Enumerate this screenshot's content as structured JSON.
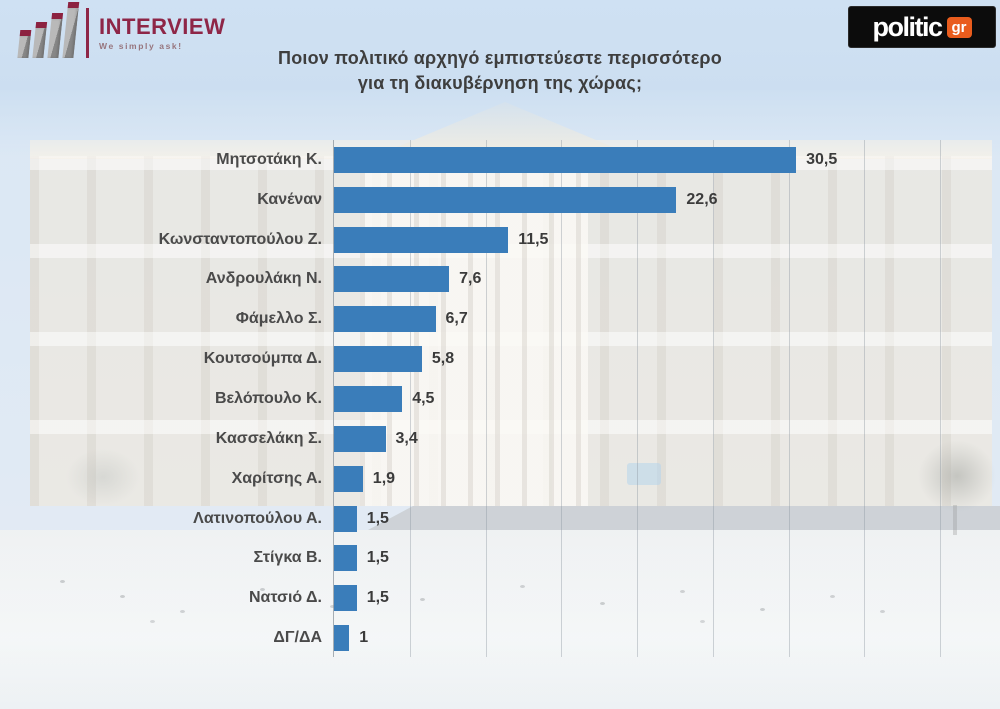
{
  "branding": {
    "interview": {
      "name": "INTERVIEW",
      "tagline": "We simply ask!"
    },
    "politic": {
      "name": "politic",
      "suffix": "gr"
    }
  },
  "title": {
    "line1": "Ποιον πολιτικό αρχηγό εμπιστεύεστε περισσότερο",
    "line2": "για τη διακυβέρνηση της χώρας;"
  },
  "chart_data": {
    "type": "bar",
    "orientation": "horizontal",
    "title": "Ποιον πολιτικό αρχηγό εμπιστεύεστε περισσότερο για τη διακυβέρνηση της χώρας;",
    "categories": [
      "Μητσοτάκη Κ.",
      "Κανέναν",
      "Κωνσταντοπούλου Ζ.",
      "Ανδρουλάκη Ν.",
      "Φάμελλο Σ.",
      "Κουτσούμπα Δ.",
      "Βελόπουλο Κ.",
      "Κασσελάκη Σ.",
      "Χαρίτσης Α.",
      "Λατινοπούλου Α.",
      "Στίγκα Β.",
      "Νατσιό Δ.",
      "ΔΓ/ΔΑ"
    ],
    "values": [
      30.5,
      22.6,
      11.5,
      7.6,
      6.7,
      5.8,
      4.5,
      3.4,
      1.9,
      1.5,
      1.5,
      1.5,
      1
    ],
    "value_labels": [
      "30,5",
      "22,6",
      "11,5",
      "7,6",
      "6,7",
      "5,8",
      "4,5",
      "3,4",
      "1,9",
      "1,5",
      "1,5",
      "1,5",
      "1"
    ],
    "xlim": [
      0,
      40
    ],
    "xticks": [
      5,
      10,
      15,
      20,
      25,
      30,
      35,
      40
    ],
    "grid": "vertical",
    "legend": "none",
    "bar_color": "#3a7dba"
  },
  "colors": {
    "bar": "#3a7dba",
    "interview_maroon": "#8e2647",
    "politic_orange": "#e95c1d",
    "politic_black": "#0c0c0c",
    "title_text": "#3e3e3e",
    "sky": "#c9dbee"
  }
}
